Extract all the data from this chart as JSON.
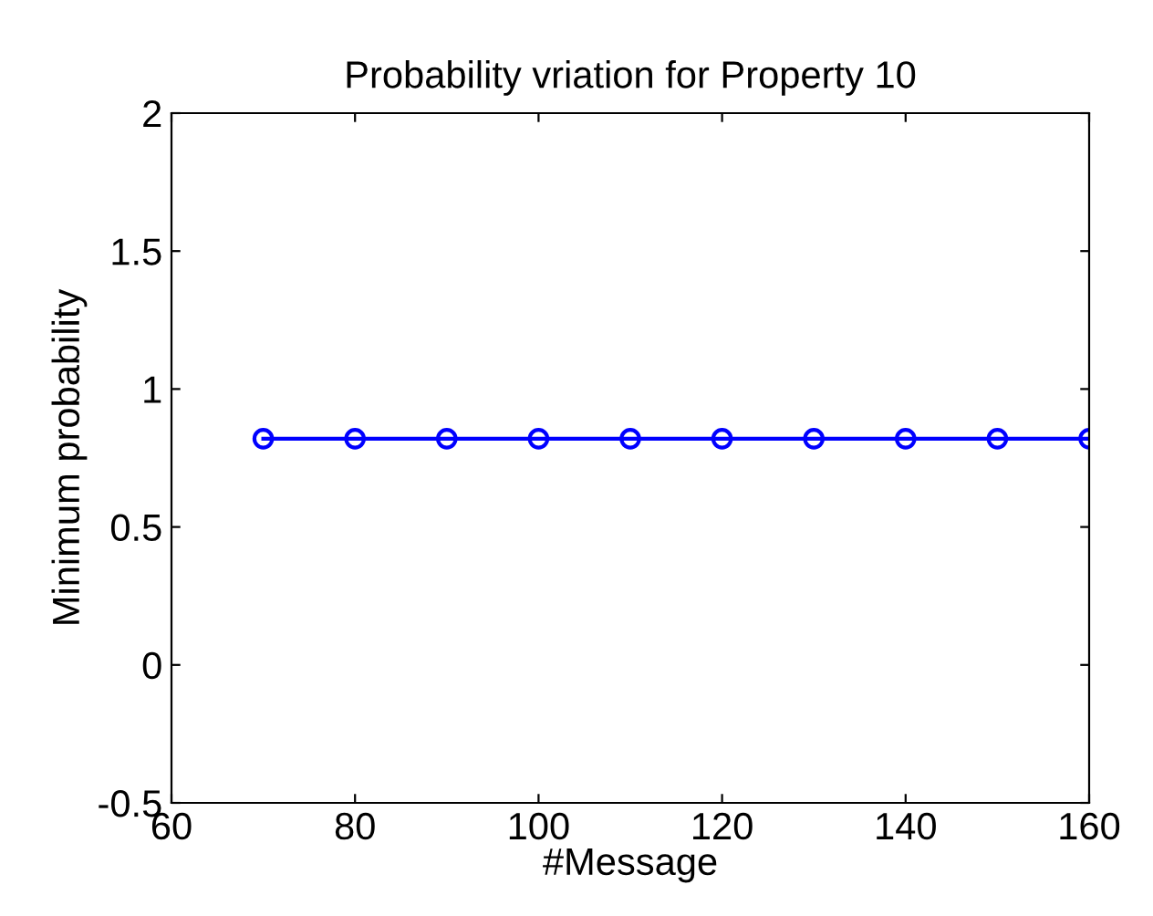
{
  "chart_data": {
    "type": "line",
    "title": "Probability vriation for Property 10",
    "xlabel": "#Message",
    "ylabel": "Minimum probability",
    "x": [
      70,
      80,
      90,
      100,
      110,
      120,
      130,
      140,
      150,
      160
    ],
    "series": [
      {
        "color": "#0000ff",
        "values": [
          0.82,
          0.82,
          0.82,
          0.82,
          0.82,
          0.82,
          0.82,
          0.82,
          0.82,
          0.82
        ]
      }
    ],
    "xlim": [
      60,
      160
    ],
    "xticks": [
      60,
      80,
      100,
      120,
      140,
      160
    ],
    "ylim": [
      -0.5,
      2
    ],
    "yticks": [
      -0.5,
      0,
      0.5,
      1,
      1.5,
      2
    ],
    "marker": "circle",
    "line_style": "solid",
    "grid": false,
    "legend": false
  }
}
